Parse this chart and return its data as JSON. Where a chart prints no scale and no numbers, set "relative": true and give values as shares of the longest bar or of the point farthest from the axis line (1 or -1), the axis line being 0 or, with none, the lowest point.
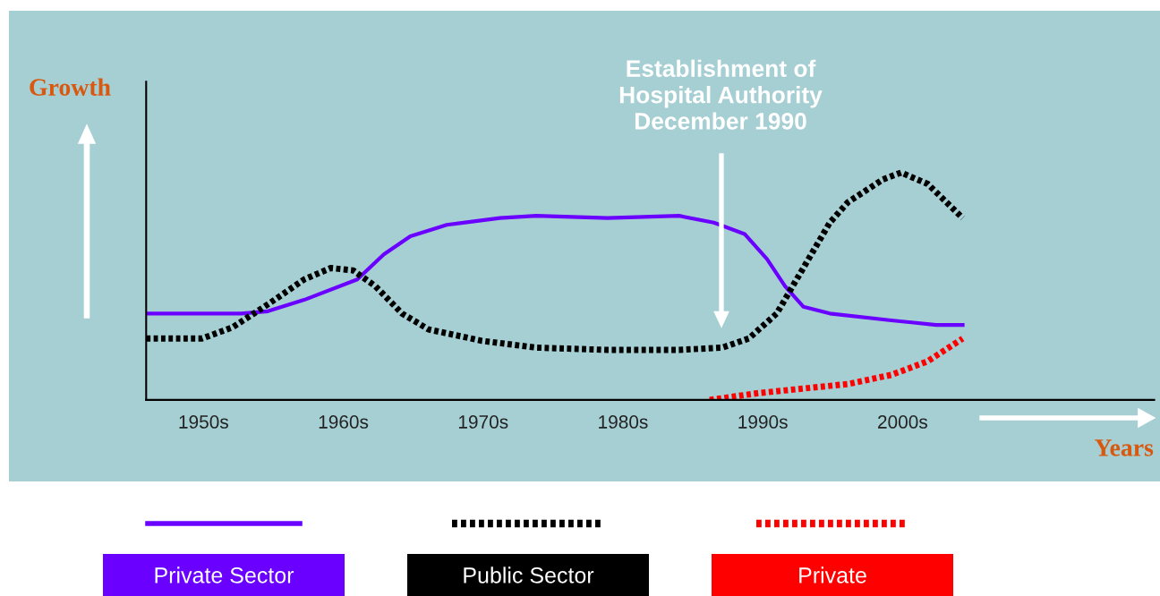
{
  "chart_data": {
    "type": "line",
    "relative": true,
    "xlabel": "Years",
    "ylabel": "Growth",
    "xlim": [
      1945.9,
      2018
    ],
    "xticks": [
      {
        "value": 1950,
        "label": "1950s"
      },
      {
        "value": 1960,
        "label": "1960s"
      },
      {
        "value": 1970,
        "label": "1970s"
      },
      {
        "value": 1980,
        "label": "1980s"
      },
      {
        "value": 1990,
        "label": "1990s"
      },
      {
        "value": 2000,
        "label": "2000s"
      }
    ],
    "legend": "bottom",
    "grid": false,
    "annotations": [
      "Establishment of\nHospital Authority\nDecember 1990"
    ],
    "series": [
      {
        "name": "Private Sector",
        "color": "#6a00ff",
        "line_style": "solid",
        "x": [
          1945.9,
          1952.7,
          1954.6,
          1957.2,
          1961.0,
          1962.9,
          1964.8,
          1967.4,
          1971.2,
          1973.8,
          1978.9,
          1984.0,
          1986.5,
          1988.7,
          1990.3,
          1991.6,
          1992.9,
          1994.8,
          1999.2,
          2002.4,
          2004.3
        ],
        "values": [
          0.38,
          0.38,
          0.39,
          0.44,
          0.53,
          0.64,
          0.72,
          0.77,
          0.8,
          0.81,
          0.8,
          0.81,
          0.78,
          0.73,
          0.62,
          0.5,
          0.41,
          0.38,
          0.35,
          0.33,
          0.33
        ]
      },
      {
        "name": "Public Sector",
        "color": "#000000",
        "line_style": "dotted",
        "x": [
          1945.9,
          1949.9,
          1952.1,
          1954.6,
          1957.2,
          1959.1,
          1960.7,
          1962.3,
          1964.2,
          1966.1,
          1969.9,
          1973.8,
          1978.9,
          1984.0,
          1987.1,
          1989.0,
          1991.0,
          1992.9,
          1994.8,
          1996.1,
          1998.6,
          1999.9,
          2001.8,
          2004.3
        ],
        "values": [
          0.27,
          0.27,
          0.32,
          0.42,
          0.53,
          0.58,
          0.57,
          0.5,
          0.38,
          0.31,
          0.26,
          0.23,
          0.22,
          0.22,
          0.23,
          0.27,
          0.38,
          0.58,
          0.78,
          0.87,
          0.97,
          1.0,
          0.95,
          0.8
        ]
      },
      {
        "name": "Private",
        "color": "#ff0000",
        "line_style": "dotted",
        "x": [
          1986.2,
          1989.7,
          1992.9,
          1996.1,
          1999.2,
          2001.8,
          2004.3
        ],
        "values": [
          0.0,
          0.03,
          0.05,
          0.07,
          0.11,
          0.17,
          0.27
        ]
      }
    ]
  }
}
